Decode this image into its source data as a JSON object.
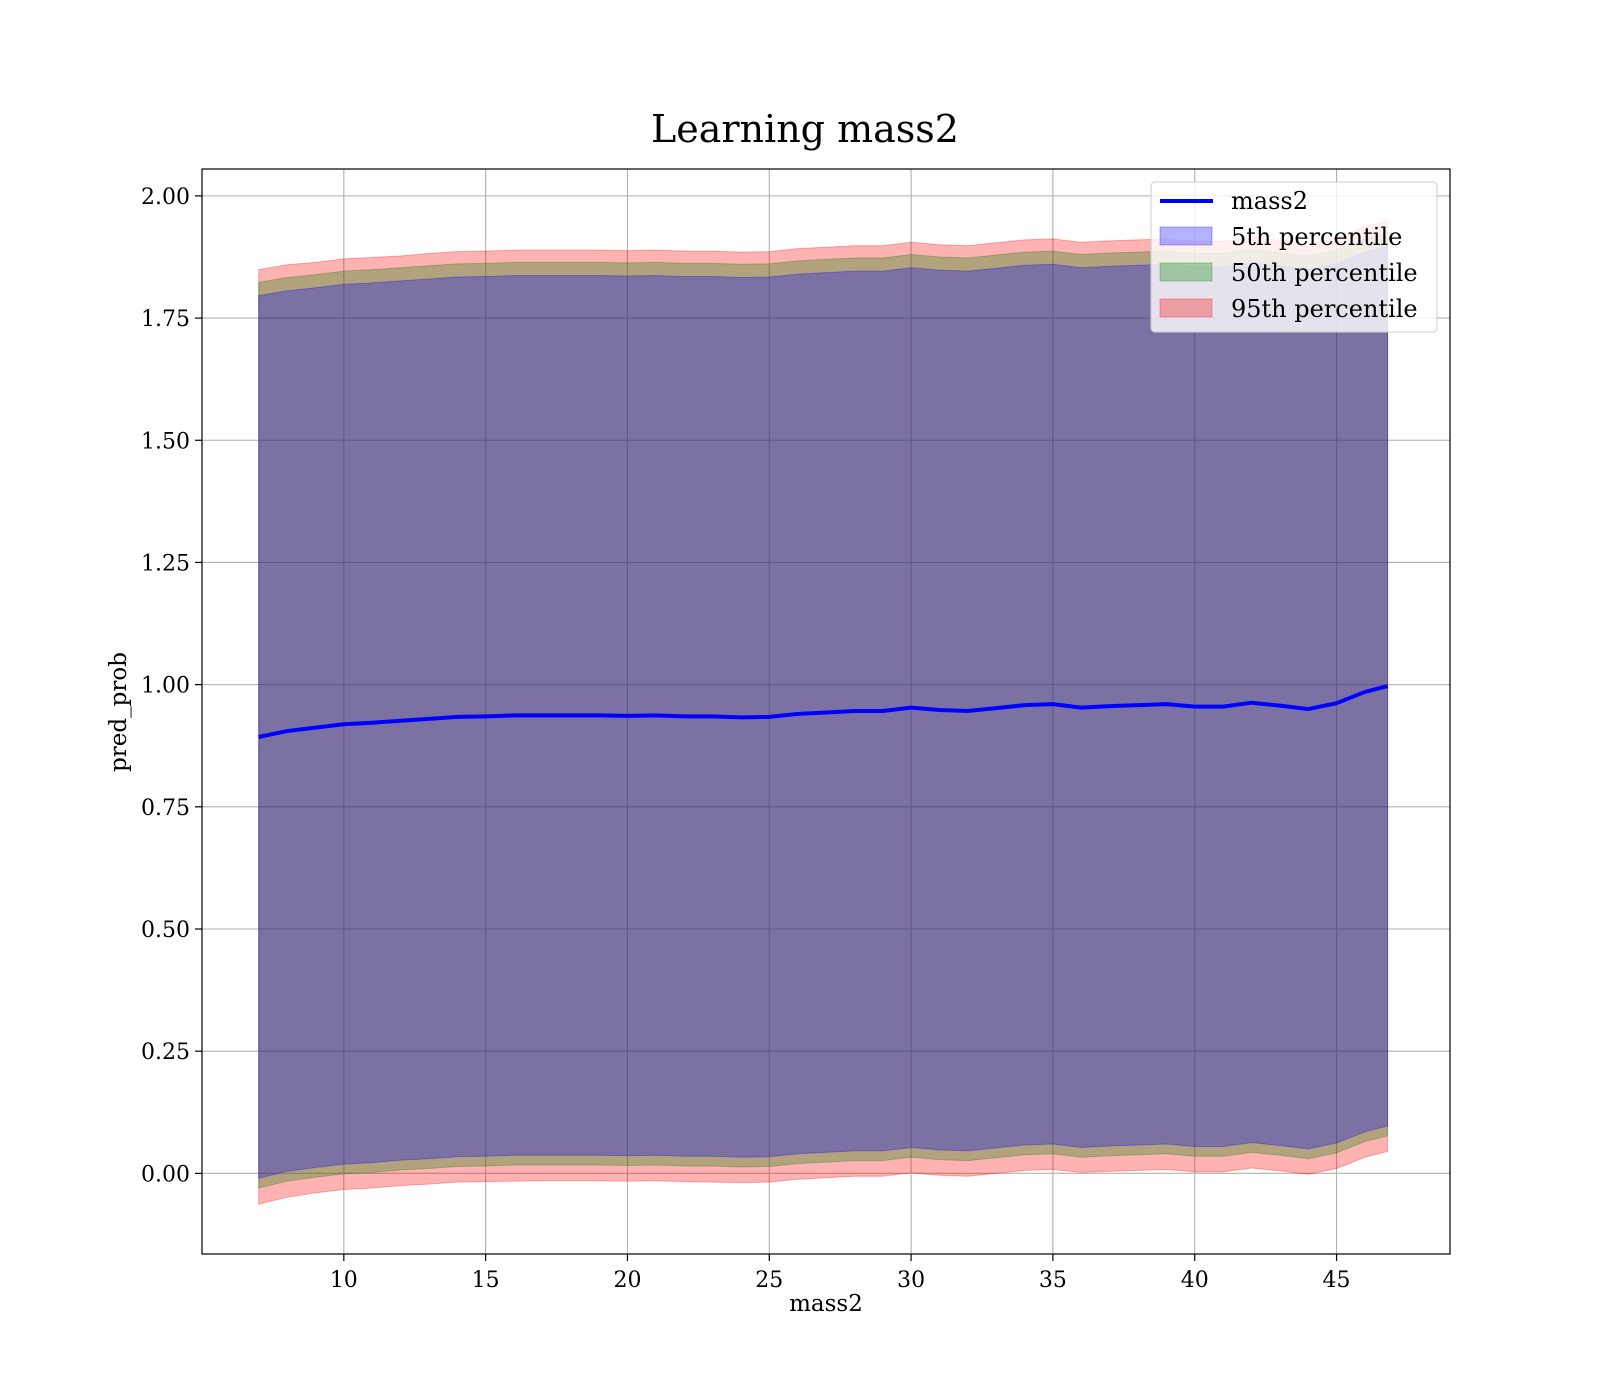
{
  "chart_data": {
    "type": "area",
    "title": "Learning mass2",
    "xlabel": "mass2",
    "ylabel": "pred_prob",
    "xlim": [
      5,
      49
    ],
    "ylim": [
      -0.165,
      2.055
    ],
    "xticks": [
      10,
      15,
      20,
      25,
      30,
      35,
      40,
      45
    ],
    "yticks": [
      0.0,
      0.25,
      0.5,
      0.75,
      1.0,
      1.25,
      1.5,
      1.75,
      2.0
    ],
    "ytick_labels": [
      "0.00",
      "0.25",
      "0.50",
      "0.75",
      "1.00",
      "1.25",
      "1.50",
      "1.75",
      "2.00"
    ],
    "grid": true,
    "legend_position": "top-right",
    "x": [
      7,
      8,
      9,
      10,
      11,
      12,
      13,
      14,
      15,
      16,
      17,
      18,
      19,
      20,
      21,
      22,
      23,
      24,
      25,
      26,
      27,
      28,
      29,
      30,
      31,
      32,
      33,
      34,
      35,
      36,
      37,
      38,
      39,
      40,
      41,
      42,
      43,
      44,
      45,
      46,
      46.8
    ],
    "line": {
      "name": "mass2",
      "color": "#0000ff",
      "values": [
        0.893,
        0.905,
        0.912,
        0.919,
        0.922,
        0.926,
        0.93,
        0.934,
        0.935,
        0.937,
        0.937,
        0.937,
        0.937,
        0.936,
        0.937,
        0.935,
        0.935,
        0.933,
        0.934,
        0.94,
        0.943,
        0.946,
        0.946,
        0.953,
        0.948,
        0.946,
        0.952,
        0.958,
        0.96,
        0.953,
        0.956,
        0.958,
        0.96,
        0.955,
        0.955,
        0.963,
        0.957,
        0.95,
        0.962,
        0.985,
        0.997
      ]
    },
    "bands": [
      {
        "name": "95th percentile",
        "color": "#ff0000",
        "opacity": 0.3,
        "lower": [
          -0.063,
          -0.049,
          -0.04,
          -0.033,
          -0.03,
          -0.025,
          -0.022,
          -0.018,
          -0.017,
          -0.016,
          -0.015,
          -0.015,
          -0.015,
          -0.016,
          -0.015,
          -0.017,
          -0.018,
          -0.019,
          -0.018,
          -0.012,
          -0.009,
          -0.006,
          -0.006,
          0.001,
          -0.004,
          -0.006,
          0.0,
          0.006,
          0.008,
          0.002,
          0.004,
          0.006,
          0.008,
          0.003,
          0.003,
          0.011,
          0.005,
          -0.002,
          0.01,
          0.033,
          0.045
        ],
        "upper": [
          1.849,
          1.859,
          1.864,
          1.871,
          1.874,
          1.877,
          1.882,
          1.886,
          1.887,
          1.889,
          1.889,
          1.889,
          1.889,
          1.888,
          1.889,
          1.887,
          1.887,
          1.885,
          1.886,
          1.892,
          1.895,
          1.898,
          1.898,
          1.905,
          1.9,
          1.898,
          1.904,
          1.91,
          1.912,
          1.905,
          1.908,
          1.91,
          1.912,
          1.907,
          1.907,
          1.915,
          1.909,
          1.902,
          1.914,
          1.937,
          1.949
        ]
      },
      {
        "name": "50th percentile",
        "color": "#008000",
        "opacity": 0.3,
        "lower": [
          -0.03,
          -0.016,
          -0.008,
          -0.001,
          0.002,
          0.007,
          0.01,
          0.014,
          0.015,
          0.017,
          0.017,
          0.017,
          0.017,
          0.016,
          0.017,
          0.015,
          0.015,
          0.013,
          0.014,
          0.02,
          0.023,
          0.026,
          0.026,
          0.033,
          0.028,
          0.026,
          0.032,
          0.038,
          0.04,
          0.033,
          0.036,
          0.038,
          0.04,
          0.035,
          0.035,
          0.043,
          0.037,
          0.03,
          0.042,
          0.065,
          0.077
        ],
        "upper": [
          1.823,
          1.833,
          1.839,
          1.846,
          1.849,
          1.853,
          1.857,
          1.861,
          1.862,
          1.864,
          1.864,
          1.864,
          1.864,
          1.863,
          1.864,
          1.862,
          1.862,
          1.86,
          1.861,
          1.867,
          1.87,
          1.873,
          1.873,
          1.88,
          1.875,
          1.873,
          1.879,
          1.885,
          1.887,
          1.88,
          1.883,
          1.885,
          1.887,
          1.882,
          1.882,
          1.89,
          1.884,
          1.877,
          1.889,
          1.912,
          1.924
        ]
      },
      {
        "name": "5th percentile",
        "color": "#0000ff",
        "opacity": 0.3,
        "lower": [
          -0.01,
          0.004,
          0.012,
          0.019,
          0.022,
          0.027,
          0.03,
          0.034,
          0.035,
          0.037,
          0.037,
          0.037,
          0.037,
          0.036,
          0.037,
          0.035,
          0.035,
          0.033,
          0.034,
          0.04,
          0.043,
          0.046,
          0.046,
          0.053,
          0.048,
          0.046,
          0.052,
          0.058,
          0.06,
          0.053,
          0.056,
          0.058,
          0.06,
          0.055,
          0.055,
          0.063,
          0.057,
          0.05,
          0.062,
          0.085,
          0.097
        ],
        "upper": [
          1.796,
          1.806,
          1.812,
          1.819,
          1.822,
          1.826,
          1.83,
          1.834,
          1.835,
          1.837,
          1.837,
          1.837,
          1.837,
          1.836,
          1.837,
          1.835,
          1.835,
          1.833,
          1.834,
          1.84,
          1.843,
          1.846,
          1.846,
          1.853,
          1.848,
          1.846,
          1.852,
          1.858,
          1.86,
          1.853,
          1.856,
          1.858,
          1.86,
          1.855,
          1.855,
          1.863,
          1.857,
          1.85,
          1.862,
          1.885,
          1.897
        ]
      }
    ],
    "legend": [
      "mass2",
      "5th percentile",
      "50th percentile",
      "95th percentile"
    ]
  }
}
